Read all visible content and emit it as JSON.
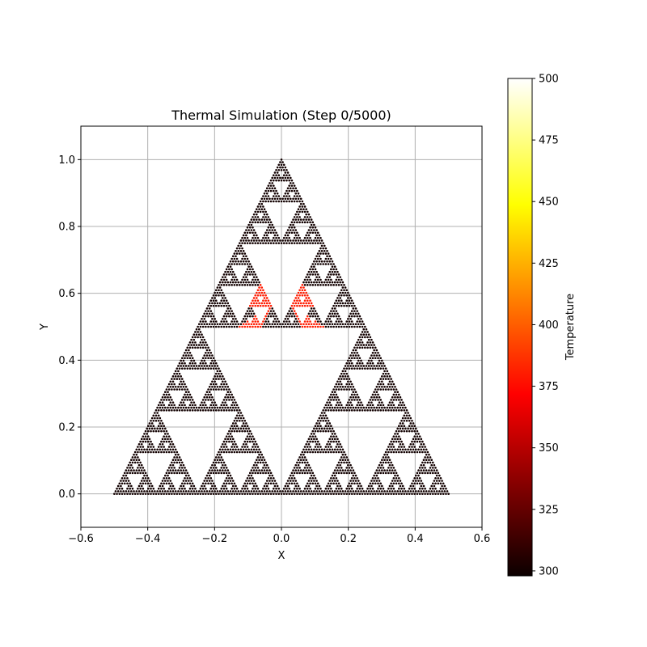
{
  "chart_data": {
    "type": "scatter",
    "title": "Thermal Simulation (Step 0/5000)",
    "xlabel": "X",
    "ylabel": "Y",
    "xlim": [
      -0.6,
      0.6
    ],
    "ylim": [
      -0.1,
      1.1
    ],
    "xticks": [
      -0.6,
      -0.4,
      -0.2,
      0.0,
      0.2,
      0.4,
      0.6
    ],
    "xtick_labels": [
      "−0.6",
      "−0.4",
      "−0.2",
      "0.0",
      "0.2",
      "0.4",
      "0.6"
    ],
    "yticks": [
      0.0,
      0.2,
      0.4,
      0.6,
      0.8,
      1.0
    ],
    "ytick_labels": [
      "0.0",
      "0.2",
      "0.4",
      "0.6",
      "0.8",
      "1.0"
    ],
    "grid": true,
    "colormap": "hot",
    "colorbar": {
      "label": "Temperature",
      "vmin": 298,
      "vmax": 500,
      "ticks": [
        300,
        325,
        350,
        375,
        400,
        425,
        450,
        475,
        500
      ],
      "tick_labels": [
        "300",
        "325",
        "350",
        "375",
        "400",
        "425",
        "450",
        "475",
        "500"
      ]
    },
    "structure": "Sierpinski triangle point cloud",
    "vertices": [
      [
        -0.5,
        0.0
      ],
      [
        0.5,
        0.0
      ],
      [
        0.0,
        1.0
      ]
    ],
    "recursion_depth": 6,
    "base_temperature": 300,
    "heated_regions": [
      {
        "triangle": [
          [
            -0.125,
            0.5
          ],
          [
            -0.0625,
            0.5
          ],
          [
            -0.03125,
            0.5625
          ]
        ],
        "temperature": 380
      },
      {
        "triangle": [
          [
            -0.09375,
            0.5625
          ],
          [
            -0.03125,
            0.5625
          ],
          [
            -0.0625,
            0.625
          ]
        ],
        "temperature": 380
      },
      {
        "triangle": [
          [
            0.0625,
            0.5
          ],
          [
            0.125,
            0.5
          ],
          [
            0.03125,
            0.5625
          ]
        ],
        "temperature": 380
      },
      {
        "triangle": [
          [
            0.03125,
            0.5625
          ],
          [
            0.09375,
            0.5625
          ],
          [
            0.0625,
            0.625
          ]
        ],
        "temperature": 380
      }
    ]
  }
}
